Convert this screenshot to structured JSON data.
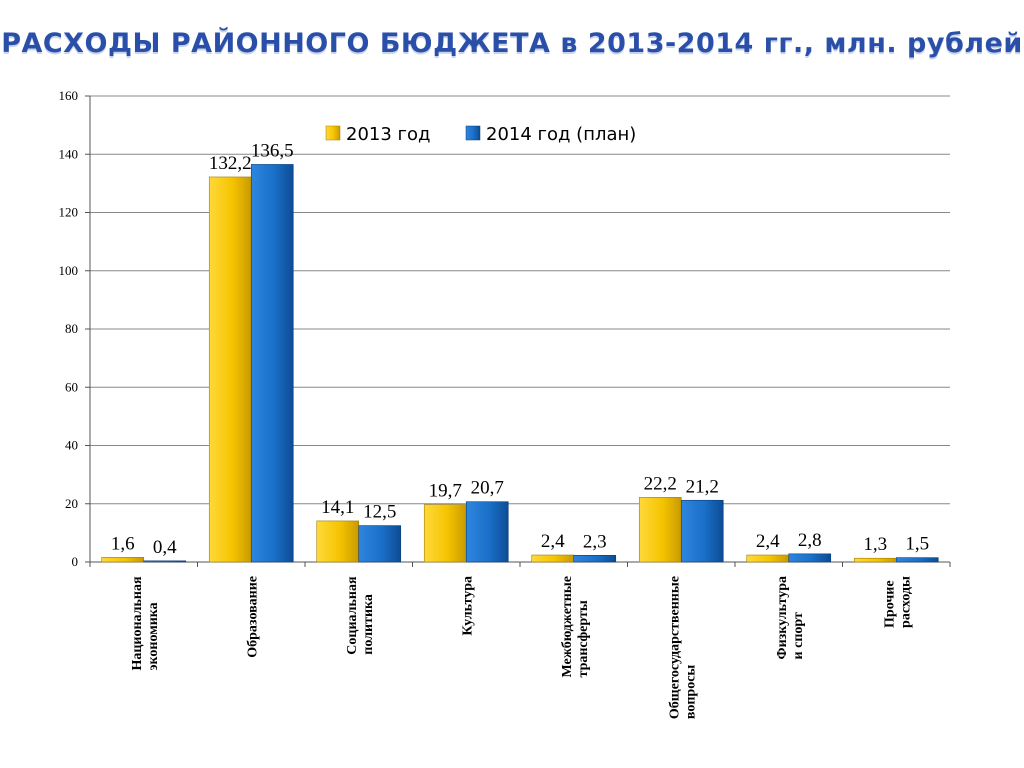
{
  "title": "РАСХОДЫ РАЙОННОГО БЮДЖЕТА в 2013-2014 гг., млн. рублей",
  "colors": {
    "series_2013": "#f5c400",
    "series_2014": "#1a6fc8",
    "grid": "#888888"
  },
  "chart_data": {
    "type": "bar",
    "title": "РАСХОДЫ РАЙОННОГО БЮДЖЕТА в 2013-2014 гг., млн. рублей",
    "categories": [
      [
        "Национальная",
        "экономика"
      ],
      [
        "Образование"
      ],
      [
        "Социальная",
        "политика"
      ],
      [
        "Культура"
      ],
      [
        "Межбюджетные",
        "трансферты"
      ],
      [
        "Общегосударственные",
        "вопросы"
      ],
      [
        "Физкультура",
        "и спорт"
      ],
      [
        "Прочие",
        "расходы"
      ]
    ],
    "series": [
      {
        "name": "2013 год",
        "values": [
          1.6,
          132.2,
          14.1,
          19.7,
          2.4,
          22.2,
          2.4,
          1.3
        ],
        "labels": [
          "1,6",
          "132,2",
          "14,1",
          "19,7",
          "2,4",
          "22,2",
          "2,4",
          "1,3"
        ]
      },
      {
        "name": "2014 год (план)",
        "values": [
          0.4,
          136.5,
          12.5,
          20.7,
          2.3,
          21.2,
          2.8,
          1.5
        ],
        "labels": [
          "0,4",
          "136,5",
          "12,5",
          "20,7",
          "2,3",
          "21,2",
          "2,8",
          "1,5"
        ]
      }
    ],
    "ylim": [
      0,
      160
    ],
    "yticks": [
      0,
      20,
      40,
      60,
      80,
      100,
      120,
      140,
      160
    ],
    "grid": true,
    "legend_position": "top"
  }
}
